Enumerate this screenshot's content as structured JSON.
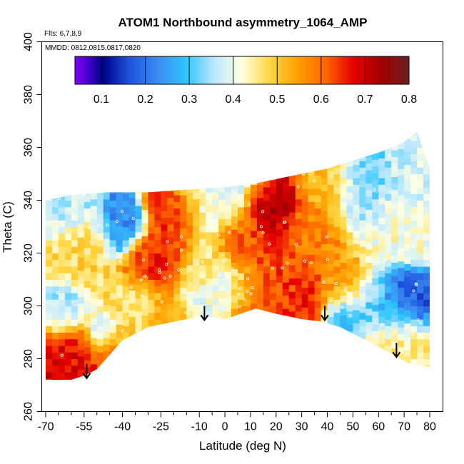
{
  "chart_data": {
    "type": "heatmap",
    "title": "ATOM1 Northbound asymmetry_1064_AMP",
    "flights_note": "Flts: 6,7,8,9",
    "dates_note": "MMDD: 0812,0815,0817,0820",
    "xlabel": "Latitude (deg N)",
    "ylabel": "Theta (C)",
    "xlim": [
      -70,
      80
    ],
    "ylim": [
      260,
      400
    ],
    "x_major_ticks": [
      -70,
      -55,
      -40,
      -25,
      -10,
      0,
      10,
      20,
      30,
      40,
      50,
      60,
      70,
      80
    ],
    "x_minor_ticks": [
      -65,
      -60,
      -50,
      -45,
      -35,
      -30,
      -20,
      -15,
      -5,
      5,
      15,
      25,
      35,
      45,
      55,
      65,
      75
    ],
    "y_ticks": [
      260,
      280,
      300,
      320,
      340,
      360,
      380,
      400
    ],
    "colorbar": {
      "range": [
        0.04,
        0.8
      ],
      "ticks": [
        0.1,
        0.2,
        0.3,
        0.4,
        0.5,
        0.6,
        0.7,
        0.8
      ],
      "palette": [
        "#7f00ff",
        "#00008b",
        "#1f56e0",
        "#3a8ef0",
        "#2ec6ff",
        "#bde8ff",
        "#ffffe0",
        "#ffd740",
        "#ffa000",
        "#ff6600",
        "#e60000",
        "#a00000",
        "#6b1f1f"
      ]
    },
    "markers": [
      {
        "label": "tropopause arrow",
        "lat": -54,
        "theta": 278
      },
      {
        "label": "tropopause arrow",
        "lat": -8,
        "theta": 300
      },
      {
        "label": "tropopause arrow",
        "lat": 39,
        "theta": 300
      },
      {
        "label": "tropopause arrow",
        "lat": 67,
        "theta": 286
      }
    ],
    "bottom_boundary": [
      [
        -70,
        272
      ],
      [
        -60,
        272
      ],
      [
        -54,
        274
      ],
      [
        -50,
        276
      ],
      [
        -40,
        287
      ],
      [
        -30,
        292
      ],
      [
        -25,
        293
      ],
      [
        -15,
        295
      ],
      [
        -8,
        296
      ],
      [
        0,
        295
      ],
      [
        12,
        299
      ],
      [
        20,
        297
      ],
      [
        30,
        295
      ],
      [
        38,
        294
      ],
      [
        45,
        292
      ],
      [
        55,
        287
      ],
      [
        65,
        282
      ],
      [
        72,
        278
      ],
      [
        80,
        277
      ]
    ],
    "top_boundary": [
      [
        -70,
        340
      ],
      [
        -60,
        342
      ],
      [
        -45,
        343
      ],
      [
        -30,
        343
      ],
      [
        -15,
        344
      ],
      [
        0,
        345
      ],
      [
        10,
        346
      ],
      [
        20,
        348
      ],
      [
        30,
        350
      ],
      [
        40,
        352
      ],
      [
        50,
        355
      ],
      [
        60,
        358
      ],
      [
        70,
        362
      ],
      [
        75,
        366
      ],
      [
        80,
        352
      ]
    ]
  }
}
